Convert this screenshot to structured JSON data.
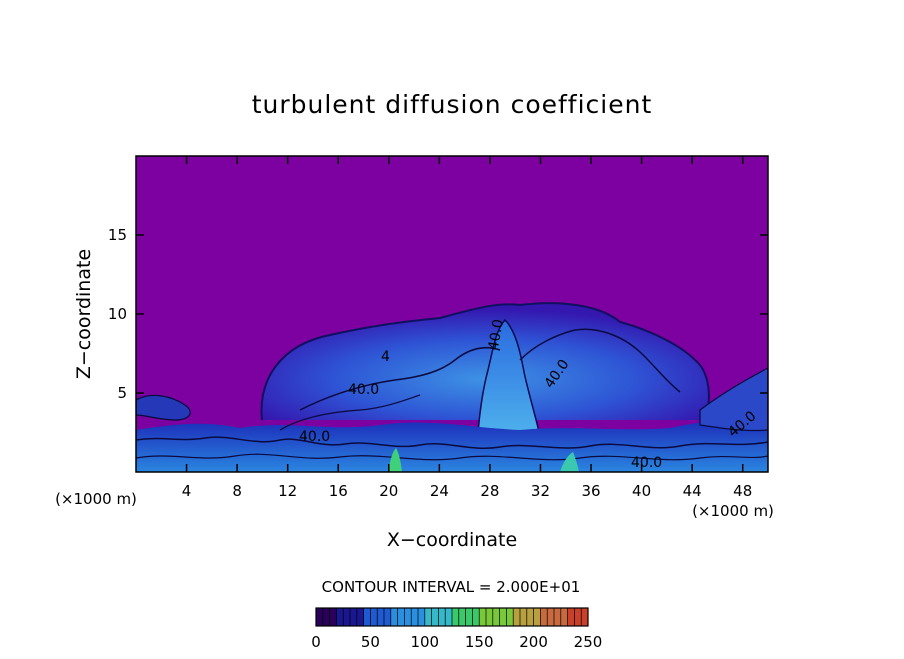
{
  "chart_data": {
    "type": "heatmap",
    "title": "turbulent diffusion coefficient",
    "xlabel": "X−coordinate",
    "ylabel": "Z−coordinate",
    "x_unit_left": "(×1000 m)",
    "x_unit_right": "(×1000 m)",
    "xlim": [
      0,
      50
    ],
    "ylim": [
      0,
      20
    ],
    "x_ticks": [
      4,
      8,
      12,
      16,
      20,
      24,
      28,
      32,
      36,
      40,
      44,
      48
    ],
    "y_ticks": [
      5,
      10,
      15
    ],
    "contour_labels": [
      "4",
      "40.0",
      "40.0",
      "40.0",
      "40.0",
      "40.0",
      "40.0"
    ],
    "contour_interval_text": "CONTOUR INTERVAL = 2.000E+01",
    "colorbar": {
      "min": 0,
      "max": 250,
      "ticks": [
        0,
        50,
        100,
        150,
        200,
        250
      ],
      "colors": [
        "#2a005a",
        "#1a1890",
        "#1f5ad0",
        "#2b8fe0",
        "#35b8c8",
        "#3ac86a",
        "#78c83a",
        "#b8a040",
        "#c86a40",
        "#c8402a"
      ]
    },
    "field_colors": {
      "background": "#7d00a0",
      "low": "#3a10b0",
      "mid": "#2f62e0",
      "high": "#40c8e8",
      "peak": "#3fd07a"
    }
  }
}
